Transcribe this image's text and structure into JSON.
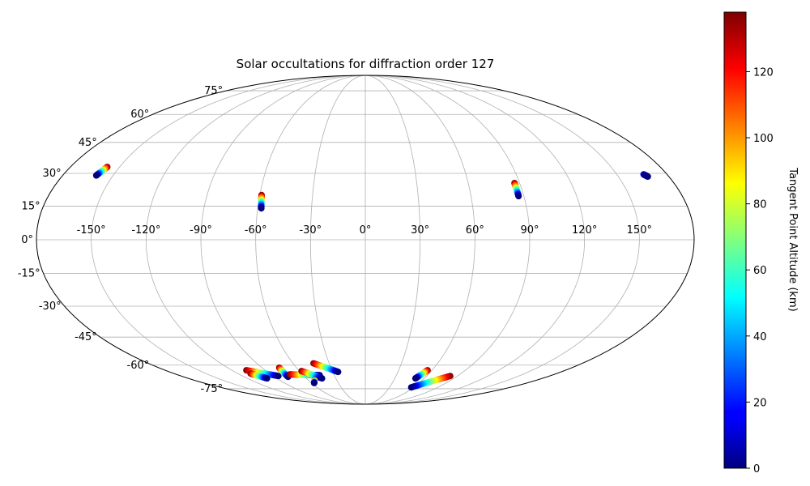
{
  "chart_data": {
    "type": "scatter",
    "projection": "mollweide",
    "title": "Solar occultations for diffraction order 127",
    "grid": true,
    "lon_ticks": [
      -150,
      -120,
      -90,
      -60,
      -30,
      0,
      30,
      60,
      90,
      120,
      150
    ],
    "lat_ticks": [
      -75,
      -60,
      -45,
      -30,
      -15,
      0,
      15,
      30,
      45,
      60,
      75
    ],
    "lon_tick_labels": [
      "-150°",
      "-120°",
      "-90°",
      "-60°",
      "-30°",
      "0°",
      "30°",
      "60°",
      "90°",
      "120°",
      "150°"
    ],
    "lat_tick_labels": [
      "-75°",
      "-60°",
      "-45°",
      "-30°",
      "-15°",
      "0°",
      "15°",
      "30°",
      "45°",
      "60°",
      "75°"
    ],
    "colorbar": {
      "label": "Tangent Point Altitude (km)",
      "range": [
        0,
        138
      ],
      "ticks": [
        0,
        20,
        40,
        60,
        80,
        100,
        120
      ],
      "tick_labels": [
        "0",
        "20",
        "40",
        "60",
        "80",
        "100",
        "120"
      ],
      "colormap": "jet"
    },
    "tracks": [
      {
        "start": [
          -157.5,
          33.0
        ],
        "end": [
          -160.0,
          29.0
        ],
        "alt_start": 138,
        "alt_end": 0
      },
      {
        "start": [
          -59.0,
          20.0
        ],
        "end": [
          -58.0,
          14.0
        ],
        "alt_start": 138,
        "alt_end": 0
      },
      {
        "start": [
          87.0,
          25.5
        ],
        "end": [
          87.0,
          19.5
        ],
        "alt_start": 138,
        "alt_end": 0
      },
      {
        "start": [
          166.0,
          29.5
        ],
        "end": [
          167.5,
          28.5
        ],
        "alt_start": 10,
        "alt_end": 0
      },
      {
        "start": [
          -107.0,
          -63.0
        ],
        "end": [
          -85.0,
          -66.5
        ],
        "alt_start": 138,
        "alt_end": 0
      },
      {
        "start": [
          -108.0,
          -65.0
        ],
        "end": [
          -100.0,
          -68.0
        ],
        "alt_start": 138,
        "alt_end": 0
      },
      {
        "start": [
          -75.0,
          -61.5
        ],
        "end": [
          -76.5,
          -67.0
        ],
        "alt_start": 138,
        "alt_end": 0
      },
      {
        "start": [
          -72.0,
          -65.5
        ],
        "end": [
          -44.0,
          -66.0
        ],
        "alt_start": 138,
        "alt_end": 0
      },
      {
        "start": [
          -58.0,
          -63.5
        ],
        "end": [
          -44.0,
          -68.0
        ],
        "alt_start": 138,
        "alt_end": 0
      },
      {
        "start": [
          -53.0,
          -69.0
        ],
        "end": [
          -57.0,
          -71.0
        ],
        "alt_start": 138,
        "alt_end": 0
      },
      {
        "start": [
          -43.0,
          -59.0
        ],
        "end": [
          -25.0,
          -64.0
        ],
        "alt_start": 138,
        "alt_end": 0
      },
      {
        "start": [
          56.0,
          -63.0
        ],
        "end": [
          51.0,
          -68.0
        ],
        "alt_start": 138,
        "alt_end": 0
      },
      {
        "start": [
          83.0,
          -66.5
        ],
        "end": [
          57.0,
          -74.0
        ],
        "alt_start": 138,
        "alt_end": 0
      }
    ]
  }
}
